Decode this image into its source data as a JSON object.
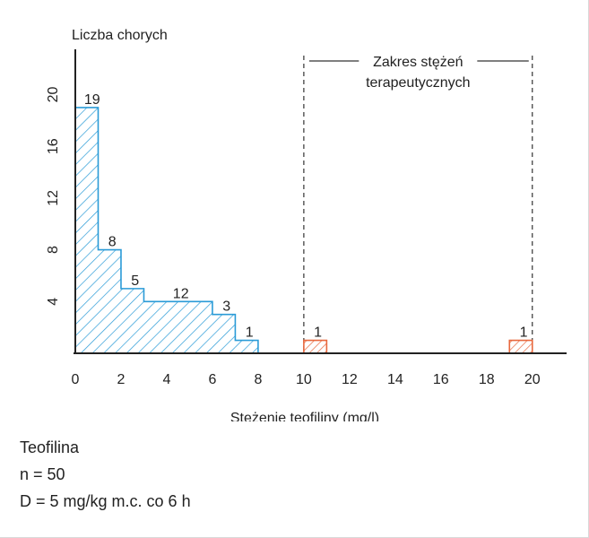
{
  "chart_data": {
    "type": "bar",
    "ylabel": "Liczba chorych",
    "xlabel": "Stężenie teofiliny (mg/l)",
    "x_ticks": [
      0,
      2,
      4,
      6,
      8,
      10,
      12,
      14,
      16,
      18,
      20
    ],
    "y_ticks": [
      4,
      8,
      12,
      16,
      20
    ],
    "xlim": [
      0,
      21.5
    ],
    "ylim": [
      0,
      23.5
    ],
    "series": [
      {
        "color": "#2a9bd7",
        "bins": [
          {
            "from": 0,
            "to": 1,
            "value": 19,
            "label": "19"
          },
          {
            "from": 1,
            "to": 2,
            "value": 8,
            "label": "8"
          },
          {
            "from": 2,
            "to": 3,
            "value": 5,
            "label": "5"
          },
          {
            "from": 3,
            "to": 6,
            "value": 4,
            "label": "12"
          },
          {
            "from": 6,
            "to": 7,
            "value": 3,
            "label": "3"
          },
          {
            "from": 7,
            "to": 8,
            "value": 1,
            "label": "1"
          }
        ]
      },
      {
        "color": "#e8683e",
        "bins": [
          {
            "from": 10,
            "to": 11,
            "value": 1,
            "label": "1"
          },
          {
            "from": 19,
            "to": 20,
            "value": 1,
            "label": "1"
          }
        ]
      }
    ],
    "range_annotation": {
      "from": 10,
      "to": 20,
      "text_line1": "Zakres stężeń",
      "text_line2": "terapeutycznych"
    }
  },
  "notes": {
    "drug": "Teofilina",
    "n": "n = 50",
    "dose": "D = 5 mg/kg m.c. co 6 h"
  }
}
